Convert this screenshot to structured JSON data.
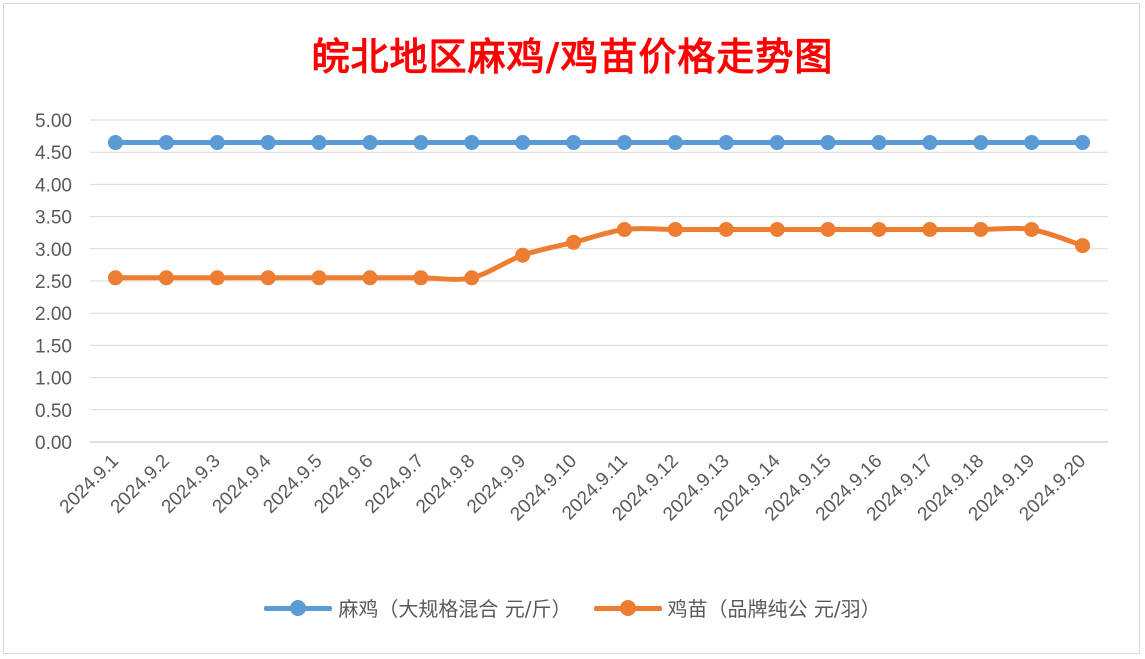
{
  "title": "皖北地区麻鸡/鸡苗价格走势图",
  "colors": {
    "title": "#ff0000",
    "grid": "#d9d9d9",
    "axis": "#bfbfbf",
    "text": "#595959"
  },
  "chart_data": {
    "type": "line",
    "title": "皖北地区麻鸡/鸡苗价格走势图",
    "categories": [
      "2024.9.1",
      "2024.9.2",
      "2024.9.3",
      "2024.9.4",
      "2024.9.5",
      "2024.9.6",
      "2024.9.7",
      "2024.9.8",
      "2024.9.9",
      "2024.9.10",
      "2024.9.11",
      "2024.9.12",
      "2024.9.13",
      "2024.9.14",
      "2024.9.15",
      "2024.9.16",
      "2024.9.17",
      "2024.9.18",
      "2024.9.19",
      "2024.9.20"
    ],
    "ylim": [
      0,
      5
    ],
    "yticks": [
      "0.00",
      "0.50",
      "1.00",
      "1.50",
      "2.00",
      "2.50",
      "3.00",
      "3.50",
      "4.00",
      "4.50",
      "5.00"
    ],
    "grid": true,
    "legend_position": "bottom",
    "series": [
      {
        "name": "麻鸡（大规格混合 元/斤）",
        "color": "#5b9bd5",
        "values": [
          4.65,
          4.65,
          4.65,
          4.65,
          4.65,
          4.65,
          4.65,
          4.65,
          4.65,
          4.65,
          4.65,
          4.65,
          4.65,
          4.65,
          4.65,
          4.65,
          4.65,
          4.65,
          4.65,
          4.65
        ]
      },
      {
        "name": "鸡苗（品牌纯公 元/羽）",
        "color": "#ed7d31",
        "values": [
          2.55,
          2.55,
          2.55,
          2.55,
          2.55,
          2.55,
          2.55,
          2.55,
          2.9,
          3.1,
          3.3,
          3.3,
          3.3,
          3.3,
          3.3,
          3.3,
          3.3,
          3.3,
          3.3,
          3.05
        ]
      }
    ]
  }
}
